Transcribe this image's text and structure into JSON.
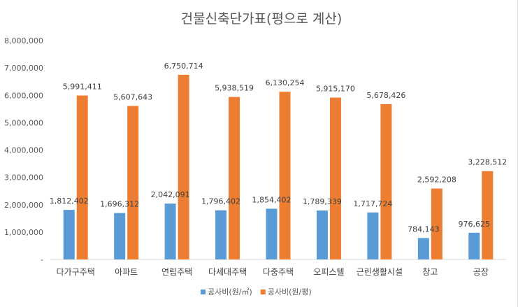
{
  "chart_data": {
    "type": "bar",
    "title": "건물신축단가표(평으로 계산)",
    "categories": [
      "다가구주택",
      "아파트",
      "연립주택",
      "다세대주택",
      "다중주택",
      "오피스텔",
      "근린생활시설",
      "창고",
      "공장"
    ],
    "series": [
      {
        "name": "공사비(원/㎡)",
        "color": "#5B9BD5",
        "values": [
          1812402,
          1696312,
          2042091,
          1796402,
          1854402,
          1789339,
          1717724,
          784143,
          976625
        ],
        "labels": [
          "1,812,402",
          "1,696,312",
          "2,042,091",
          "1,796,402",
          "1,854,402",
          "1,789,339",
          "1,717,724",
          "784,143",
          "976,625"
        ]
      },
      {
        "name": "공사비(원/평)",
        "color": "#ED7D31",
        "values": [
          5991411,
          5607643,
          6750714,
          5938519,
          6130254,
          5915170,
          5678426,
          2592208,
          3228512
        ],
        "labels": [
          "5,991,411",
          "5,607,643",
          "6,750,714",
          "5,938,519",
          "6,130,254",
          "5,915,170",
          "5,678,426",
          "2,592,208",
          "3,228,512"
        ]
      }
    ],
    "ylim": [
      0,
      8000000
    ],
    "yticks": [
      0,
      1000000,
      2000000,
      3000000,
      4000000,
      5000000,
      6000000,
      7000000,
      8000000
    ],
    "ytick_labels": [
      "-",
      "1,000,000",
      "2,000,000",
      "3,000,000",
      "4,000,000",
      "5,000,000",
      "6,000,000",
      "7,000,000",
      "8,000,000"
    ],
    "grid": false,
    "legend_position": "bottom"
  }
}
